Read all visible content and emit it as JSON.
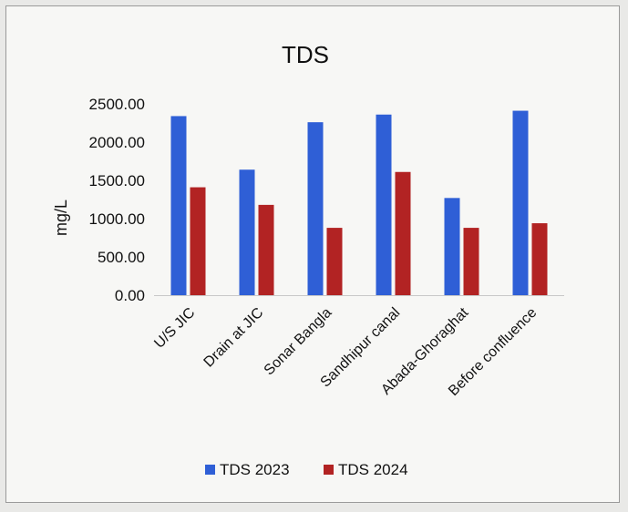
{
  "chart_data": {
    "type": "bar",
    "title": "TDS",
    "xlabel": "",
    "ylabel": "mg/L",
    "ylim": [
      0,
      2500
    ],
    "yticks": [
      "0.00",
      "500.00",
      "1000.00",
      "1500.00",
      "2000.00",
      "2500.00"
    ],
    "categories": [
      "U/S JIC",
      "Drain at JIC",
      "Sonar Bangla",
      "Sandhipur canal",
      "Abada-Ghoraghat",
      "Before confluence"
    ],
    "series": [
      {
        "name": "TDS 2023",
        "color": "#2f5fd6",
        "values": [
          2340,
          1640,
          2260,
          2360,
          1270,
          2410
        ]
      },
      {
        "name": "TDS 2024",
        "color": "#b22323",
        "values": [
          1410,
          1180,
          880,
          1610,
          880,
          940
        ]
      }
    ],
    "grid": false,
    "legend_position": "bottom"
  }
}
